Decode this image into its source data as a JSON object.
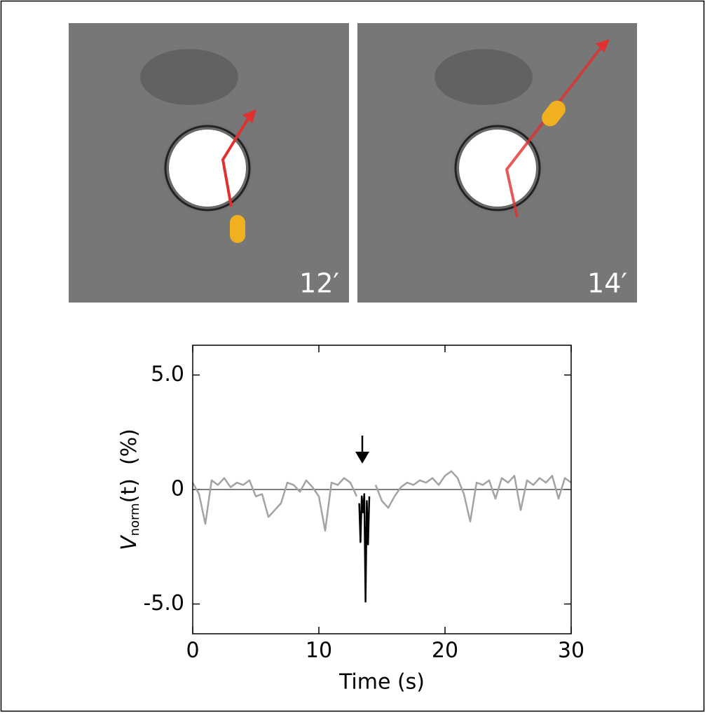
{
  "images": [
    {
      "label": "12′"
    },
    {
      "label": "14′"
    }
  ],
  "chart_data": {
    "type": "line",
    "xlabel": "Time (s)",
    "ylabel": {
      "main": "V",
      "sub": "norm",
      "rest": "(t)  (%)"
    },
    "xlim": [
      0,
      30
    ],
    "xticks": [
      0,
      10,
      20,
      30
    ],
    "ylim": [
      -6.3,
      6.3
    ],
    "yticks": [
      {
        "value": 5,
        "label": "5.0"
      },
      0,
      {
        "value": -5,
        "label": "-5.0"
      }
    ],
    "x": [
      0,
      0.5,
      1,
      1.5,
      2,
      2.5,
      3,
      3.5,
      4,
      4.5,
      5,
      5.5,
      6,
      6.5,
      7,
      7.5,
      8,
      8.5,
      9,
      9.5,
      10,
      10.5,
      11,
      11.5,
      12,
      12.5,
      13,
      13.2,
      13.3,
      13.4,
      13.5,
      13.6,
      13.7,
      13.8,
      13.9,
      14,
      14.5,
      15,
      15.5,
      16,
      16.5,
      17,
      17.5,
      18,
      18.5,
      19,
      19.5,
      20,
      20.5,
      21,
      21.5,
      22,
      22.5,
      23,
      23.5,
      24,
      24.5,
      25,
      25.5,
      26,
      26.5,
      27,
      27.5,
      28,
      28.5,
      29,
      29.5,
      30
    ],
    "series": [
      {
        "color": "#a3a3a3",
        "values": [
          0.3,
          -0.2,
          -1.5,
          0.4,
          0.2,
          0.5,
          0.1,
          0.3,
          0.2,
          0.4,
          -0.3,
          -0.2,
          -1.2,
          -0.9,
          -0.6,
          0.3,
          0.2,
          -0.1,
          0.4,
          0.1,
          -0.3,
          -1.8,
          0.3,
          0.2,
          0.5,
          0.3,
          -0.3,
          null,
          null,
          null,
          null,
          null,
          null,
          null,
          null,
          null,
          0.2,
          -0.5,
          -0.8,
          -0.3,
          0.1,
          0.3,
          0.2,
          0.4,
          0.3,
          0.5,
          0.2,
          0.6,
          0.8,
          0.5,
          -0.2,
          -1.4,
          0.3,
          0.2,
          0.4,
          -0.4,
          0.5,
          0.3,
          0.6,
          -0.9,
          0.4,
          0.2,
          0.5,
          0.3,
          0.6,
          -0.4,
          0.5,
          0.3
        ]
      },
      {
        "color": "#000000",
        "values": [
          null,
          null,
          null,
          null,
          null,
          null,
          null,
          null,
          null,
          null,
          null,
          null,
          null,
          null,
          null,
          null,
          null,
          null,
          null,
          null,
          null,
          null,
          null,
          null,
          null,
          null,
          null,
          -0.6,
          -2.3,
          -0.3,
          -1.0,
          -0.2,
          -4.9,
          -0.5,
          -2.4,
          -0.3,
          null,
          null,
          null,
          null,
          null,
          null,
          null,
          null,
          null,
          null,
          null,
          null,
          null,
          null,
          null,
          null,
          null,
          null,
          null,
          null,
          null,
          null,
          null,
          null,
          null,
          null,
          null,
          null,
          null,
          null,
          null,
          null
        ]
      }
    ]
  }
}
